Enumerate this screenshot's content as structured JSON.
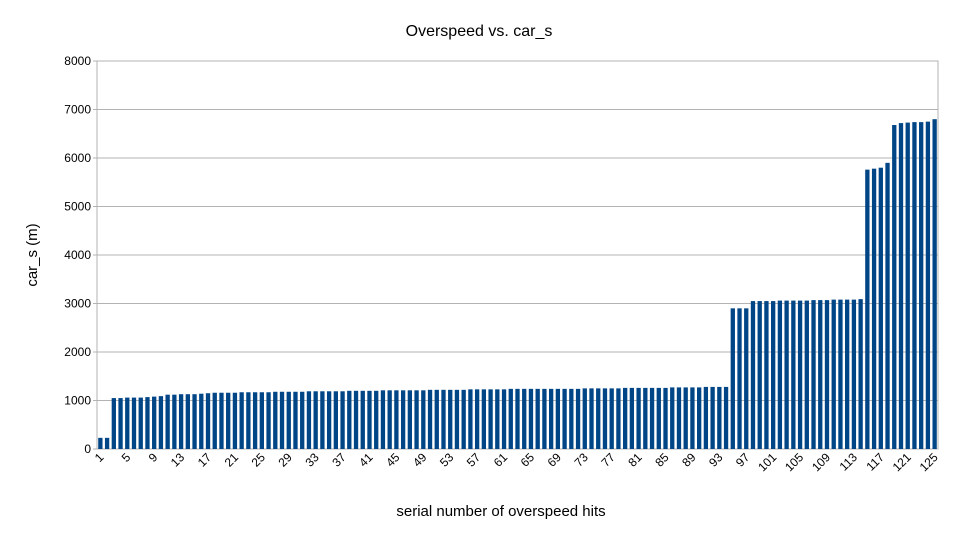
{
  "chart_data": {
    "type": "bar",
    "title": "Overspeed vs. car_s",
    "x_label": "serial number of overspeed hits",
    "y_label": "car_s (m)",
    "color": "#004586",
    "grid": true,
    "ylim": [
      0,
      8000
    ],
    "yticks": [
      0,
      1000,
      2000,
      3000,
      4000,
      5000,
      6000,
      7000,
      8000
    ],
    "categories": [
      "1",
      null,
      null,
      null,
      "5",
      null,
      null,
      null,
      "9",
      null,
      null,
      null,
      "13",
      null,
      null,
      null,
      "17",
      null,
      null,
      null,
      "21",
      null,
      null,
      null,
      "25",
      null,
      null,
      null,
      "29",
      null,
      null,
      null,
      "33",
      null,
      null,
      null,
      "37",
      null,
      null,
      null,
      "41",
      null,
      null,
      null,
      "45",
      null,
      null,
      null,
      "49",
      null,
      null,
      null,
      "53",
      null,
      null,
      null,
      "57",
      null,
      null,
      null,
      "61",
      null,
      null,
      null,
      "65",
      null,
      null,
      null,
      "69",
      null,
      null,
      null,
      "73",
      null,
      null,
      null,
      "77",
      null,
      null,
      null,
      "81",
      null,
      null,
      null,
      "85",
      null,
      null,
      null,
      "89",
      null,
      null,
      null,
      "93",
      null,
      null,
      null,
      "97",
      null,
      null,
      null,
      "101",
      null,
      null,
      null,
      "105",
      null,
      null,
      null,
      "109",
      null,
      null,
      null,
      "113",
      null,
      null,
      null,
      "117",
      null,
      null,
      null,
      "121",
      null,
      null,
      null,
      "125"
    ],
    "values": [
      230,
      230,
      1050,
      1050,
      1060,
      1060,
      1060,
      1070,
      1080,
      1090,
      1120,
      1120,
      1130,
      1130,
      1130,
      1140,
      1150,
      1160,
      1160,
      1160,
      1160,
      1170,
      1170,
      1170,
      1170,
      1170,
      1180,
      1180,
      1180,
      1180,
      1180,
      1190,
      1190,
      1190,
      1190,
      1190,
      1190,
      1200,
      1200,
      1200,
      1200,
      1200,
      1210,
      1210,
      1210,
      1210,
      1210,
      1210,
      1210,
      1220,
      1220,
      1220,
      1220,
      1220,
      1220,
      1230,
      1230,
      1230,
      1230,
      1230,
      1230,
      1240,
      1240,
      1240,
      1240,
      1240,
      1240,
      1240,
      1240,
      1240,
      1240,
      1240,
      1250,
      1250,
      1250,
      1250,
      1250,
      1250,
      1260,
      1260,
      1260,
      1260,
      1260,
      1260,
      1260,
      1270,
      1270,
      1270,
      1270,
      1270,
      1280,
      1280,
      1280,
      1280,
      2900,
      2900,
      2900,
      3050,
      3050,
      3050,
      3050,
      3060,
      3060,
      3060,
      3060,
      3060,
      3070,
      3070,
      3070,
      3080,
      3080,
      3080,
      3080,
      3090,
      5760,
      5780,
      5800,
      5900,
      6680,
      6720,
      6730,
      6740,
      6740,
      6750,
      6800
    ]
  }
}
